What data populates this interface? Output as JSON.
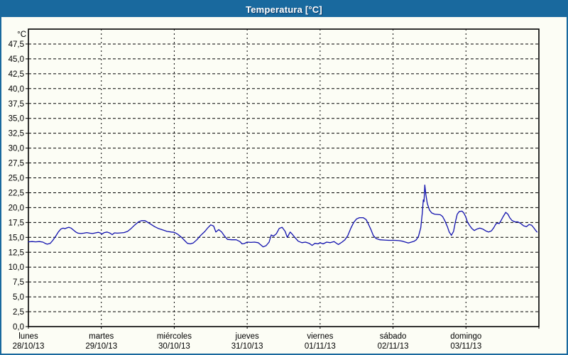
{
  "title": "Temperatura [°C]",
  "colors": {
    "titlebar": "#19699e",
    "background": "#fcfdf5",
    "line": "#1111ae",
    "grid": "#000000",
    "text": "#000000"
  },
  "chart_data": {
    "type": "line",
    "title": "Temperatura [°C]",
    "y_unit_label": "°C",
    "ylabel": "Temperatura [°C]",
    "xlabel": "",
    "ylim": [
      0,
      50
    ],
    "y_tick_step": 2.5,
    "grid": true,
    "legend": "none",
    "line_color": "#1111ae",
    "y_ticks": [
      {
        "value": 0,
        "label": "0,0"
      },
      {
        "value": 2.5,
        "label": "2,5"
      },
      {
        "value": 5,
        "label": "5,0"
      },
      {
        "value": 7.5,
        "label": "7,5"
      },
      {
        "value": 10,
        "label": "10,0"
      },
      {
        "value": 12.5,
        "label": "12,5"
      },
      {
        "value": 15,
        "label": "15,0"
      },
      {
        "value": 17.5,
        "label": "17,5"
      },
      {
        "value": 20,
        "label": "20,0"
      },
      {
        "value": 22.5,
        "label": "22,5"
      },
      {
        "value": 25,
        "label": "25,0"
      },
      {
        "value": 27.5,
        "label": "27,5"
      },
      {
        "value": 30,
        "label": "30,0"
      },
      {
        "value": 32.5,
        "label": "32,5"
      },
      {
        "value": 35,
        "label": "35,0"
      },
      {
        "value": 37.5,
        "label": "37,5"
      },
      {
        "value": 40,
        "label": "40,0"
      },
      {
        "value": 42.5,
        "label": "42,5"
      },
      {
        "value": 45,
        "label": "45,0"
      },
      {
        "value": 47.5,
        "label": "47,5"
      }
    ],
    "x_days": [
      {
        "weekday": "lunes",
        "date": "28/10/13"
      },
      {
        "weekday": "martes",
        "date": "29/10/13"
      },
      {
        "weekday": "miércoles",
        "date": "30/10/13"
      },
      {
        "weekday": "jueves",
        "date": "31/10/13"
      },
      {
        "weekday": "viernes",
        "date": "01/11/13"
      },
      {
        "weekday": "sábado",
        "date": "02/11/13"
      },
      {
        "weekday": "domingo",
        "date": "03/11/13"
      }
    ],
    "x_unit": "days since lunes 28/10/13 00:00",
    "x_range_days": [
      0,
      7
    ],
    "series": [
      {
        "name": "Temperatura",
        "color": "#1111ae",
        "points": [
          [
            0.0,
            14.25
          ],
          [
            0.05,
            14.3
          ],
          [
            0.1,
            14.25
          ],
          [
            0.15,
            14.3
          ],
          [
            0.2,
            14.2
          ],
          [
            0.235,
            13.95
          ],
          [
            0.26,
            13.85
          ],
          [
            0.3,
            14.0
          ],
          [
            0.335,
            14.5
          ],
          [
            0.375,
            15.2
          ],
          [
            0.41,
            15.9
          ],
          [
            0.445,
            16.4
          ],
          [
            0.475,
            16.55
          ],
          [
            0.5,
            16.45
          ],
          [
            0.53,
            16.6
          ],
          [
            0.555,
            16.7
          ],
          [
            0.585,
            16.55
          ],
          [
            0.62,
            16.2
          ],
          [
            0.65,
            15.9
          ],
          [
            0.68,
            15.7
          ],
          [
            0.72,
            15.65
          ],
          [
            0.76,
            15.7
          ],
          [
            0.8,
            15.8
          ],
          [
            0.84,
            15.7
          ],
          [
            0.88,
            15.65
          ],
          [
            0.92,
            15.75
          ],
          [
            0.96,
            15.85
          ],
          [
            0.99,
            15.7
          ],
          [
            1.01,
            15.55
          ],
          [
            1.04,
            15.8
          ],
          [
            1.08,
            15.9
          ],
          [
            1.12,
            15.7
          ],
          [
            1.15,
            15.45
          ],
          [
            1.18,
            15.75
          ],
          [
            1.22,
            15.7
          ],
          [
            1.27,
            15.75
          ],
          [
            1.31,
            15.8
          ],
          [
            1.36,
            16.0
          ],
          [
            1.41,
            16.5
          ],
          [
            1.46,
            17.1
          ],
          [
            1.51,
            17.6
          ],
          [
            1.55,
            17.8
          ],
          [
            1.6,
            17.8
          ],
          [
            1.64,
            17.5
          ],
          [
            1.68,
            17.2
          ],
          [
            1.73,
            16.8
          ],
          [
            1.78,
            16.5
          ],
          [
            1.84,
            16.25
          ],
          [
            1.9,
            16.0
          ],
          [
            1.96,
            15.9
          ],
          [
            2.0,
            15.85
          ],
          [
            2.05,
            15.5
          ],
          [
            2.1,
            15.0
          ],
          [
            2.14,
            14.5
          ],
          [
            2.18,
            14.0
          ],
          [
            2.22,
            13.9
          ],
          [
            2.26,
            14.05
          ],
          [
            2.31,
            14.6
          ],
          [
            2.36,
            15.3
          ],
          [
            2.42,
            16.0
          ],
          [
            2.46,
            16.6
          ],
          [
            2.5,
            17.1
          ],
          [
            2.54,
            16.9
          ],
          [
            2.57,
            15.9
          ],
          [
            2.61,
            16.3
          ],
          [
            2.65,
            15.9
          ],
          [
            2.69,
            15.2
          ],
          [
            2.73,
            14.65
          ],
          [
            2.79,
            14.6
          ],
          [
            2.85,
            14.6
          ],
          [
            2.9,
            14.3
          ],
          [
            2.93,
            13.9
          ],
          [
            2.96,
            13.95
          ],
          [
            3.0,
            14.2
          ],
          [
            3.05,
            14.15
          ],
          [
            3.1,
            14.2
          ],
          [
            3.15,
            14.1
          ],
          [
            3.19,
            13.7
          ],
          [
            3.22,
            13.4
          ],
          [
            3.26,
            13.6
          ],
          [
            3.3,
            14.2
          ],
          [
            3.33,
            15.4
          ],
          [
            3.36,
            15.2
          ],
          [
            3.4,
            15.6
          ],
          [
            3.44,
            16.5
          ],
          [
            3.48,
            16.7
          ],
          [
            3.52,
            16.0
          ],
          [
            3.55,
            15.0
          ],
          [
            3.59,
            15.9
          ],
          [
            3.62,
            15.5
          ],
          [
            3.66,
            14.9
          ],
          [
            3.7,
            14.35
          ],
          [
            3.75,
            14.1
          ],
          [
            3.8,
            14.2
          ],
          [
            3.85,
            14.0
          ],
          [
            3.89,
            13.65
          ],
          [
            3.93,
            14.0
          ],
          [
            3.97,
            13.9
          ],
          [
            4.0,
            14.1
          ],
          [
            4.04,
            13.9
          ],
          [
            4.09,
            14.2
          ],
          [
            4.14,
            14.1
          ],
          [
            4.19,
            14.3
          ],
          [
            4.25,
            13.8
          ],
          [
            4.3,
            14.2
          ],
          [
            4.34,
            14.6
          ],
          [
            4.38,
            15.3
          ],
          [
            4.42,
            16.5
          ],
          [
            4.46,
            17.5
          ],
          [
            4.5,
            18.1
          ],
          [
            4.54,
            18.3
          ],
          [
            4.59,
            18.3
          ],
          [
            4.63,
            18.0
          ],
          [
            4.66,
            17.3
          ],
          [
            4.7,
            16.2
          ],
          [
            4.73,
            15.3
          ],
          [
            4.77,
            14.8
          ],
          [
            4.82,
            14.6
          ],
          [
            4.88,
            14.55
          ],
          [
            4.94,
            14.5
          ],
          [
            4.98,
            14.5
          ],
          [
            5.03,
            14.5
          ],
          [
            5.08,
            14.45
          ],
          [
            5.13,
            14.35
          ],
          [
            5.17,
            14.2
          ],
          [
            5.21,
            14.05
          ],
          [
            5.25,
            14.2
          ],
          [
            5.29,
            14.35
          ],
          [
            5.32,
            14.6
          ],
          [
            5.35,
            15.2
          ],
          [
            5.38,
            16.6
          ],
          [
            5.4,
            19.0
          ],
          [
            5.415,
            21.3
          ],
          [
            5.425,
            21.0
          ],
          [
            5.435,
            23.8
          ],
          [
            5.45,
            22.2
          ],
          [
            5.47,
            20.7
          ],
          [
            5.5,
            19.6
          ],
          [
            5.53,
            19.1
          ],
          [
            5.57,
            18.9
          ],
          [
            5.61,
            18.85
          ],
          [
            5.65,
            18.8
          ],
          [
            5.68,
            18.5
          ],
          [
            5.71,
            17.8
          ],
          [
            5.745,
            16.8
          ],
          [
            5.77,
            15.9
          ],
          [
            5.8,
            15.35
          ],
          [
            5.83,
            16.0
          ],
          [
            5.855,
            17.6
          ],
          [
            5.88,
            18.9
          ],
          [
            5.91,
            19.35
          ],
          [
            5.945,
            19.4
          ],
          [
            5.97,
            19.1
          ],
          [
            5.995,
            18.5
          ],
          [
            6.02,
            17.6
          ],
          [
            6.05,
            17.0
          ],
          [
            6.08,
            16.5
          ],
          [
            6.115,
            16.15
          ],
          [
            6.15,
            16.4
          ],
          [
            6.19,
            16.55
          ],
          [
            6.23,
            16.4
          ],
          [
            6.27,
            16.1
          ],
          [
            6.31,
            15.9
          ],
          [
            6.35,
            16.1
          ],
          [
            6.38,
            16.6
          ],
          [
            6.41,
            17.25
          ],
          [
            6.435,
            17.4
          ],
          [
            6.455,
            17.3
          ],
          [
            6.48,
            17.8
          ],
          [
            6.51,
            18.5
          ],
          [
            6.545,
            19.2
          ],
          [
            6.575,
            18.9
          ],
          [
            6.6,
            18.3
          ],
          [
            6.63,
            17.85
          ],
          [
            6.67,
            17.6
          ],
          [
            6.71,
            17.6
          ],
          [
            6.75,
            17.35
          ],
          [
            6.79,
            16.95
          ],
          [
            6.83,
            16.8
          ],
          [
            6.865,
            17.15
          ],
          [
            6.9,
            17.05
          ],
          [
            6.93,
            16.6
          ],
          [
            6.96,
            16.1
          ],
          [
            6.975,
            15.9
          ]
        ]
      }
    ]
  }
}
